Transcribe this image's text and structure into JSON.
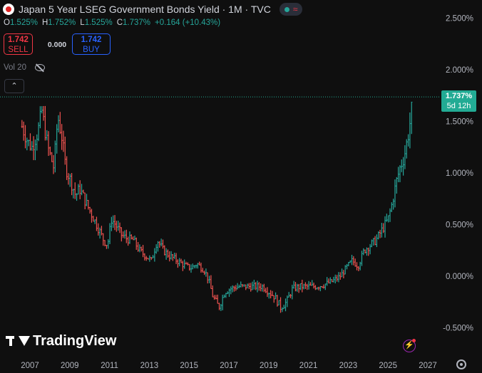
{
  "header": {
    "title": "Japan 5 Year LSEG Government Bonds Yield · 1M · TVC",
    "ohlc": [
      {
        "label": "O",
        "value": "1.525%"
      },
      {
        "label": "H",
        "value": "1.752%"
      },
      {
        "label": "L",
        "value": "1.525%"
      },
      {
        "label": "C",
        "value": "1.737%"
      }
    ],
    "change": "+0.164 (+10.43%)"
  },
  "trade": {
    "sell_price": "1.742",
    "sell_label": "SELL",
    "spread": "0.000",
    "buy_price": "1.742",
    "buy_label": "BUY"
  },
  "volume": {
    "label": "Vol 20"
  },
  "last_price": {
    "value": "1.737%",
    "countdown": "5d 12h"
  },
  "logo": {
    "text": "TradingView"
  },
  "icons": {
    "flag": "japan-flag-icon",
    "live": "market-open-dot-icon",
    "wave": "wave-icon",
    "eye": "eye-slash-icon",
    "collapse": "chevron-up-icon",
    "bolt": "lightning-icon",
    "settings": "gear-icon"
  },
  "colors": {
    "background": "#0f0f0f",
    "up": "#26a69a",
    "down": "#ef5350",
    "last_price": "#22ab94",
    "sell": "#f23645",
    "buy": "#2962ff"
  },
  "chart_data": {
    "type": "ohlc",
    "title": "Japan 5 Year LSEG Government Bonds Yield · 1M · TVC",
    "interval": "1M",
    "y_unit": "%",
    "ylim": [
      -0.6,
      2.6
    ],
    "xlim": [
      2006.5,
      2027.4
    ],
    "y_ticks": [
      "2.500%",
      "2.000%",
      "1.500%",
      "1.000%",
      "0.500%",
      "0.000%",
      "-0.500%"
    ],
    "y_tick_values": [
      2.5,
      2.0,
      1.5,
      1.0,
      0.5,
      0.0,
      -0.5
    ],
    "x_ticks": [
      "2007",
      "2009",
      "2011",
      "2013",
      "2015",
      "2017",
      "2019",
      "2021",
      "2023",
      "2025",
      "2027"
    ],
    "x_tick_values": [
      2007,
      2009,
      2011,
      2013,
      2015,
      2017,
      2019,
      2021,
      2023,
      2025,
      2027
    ],
    "last_value": 1.737,
    "grid": false,
    "series_anchors": [
      {
        "t": 2006.6,
        "y": 1.45
      },
      {
        "t": 2006.9,
        "y": 1.3
      },
      {
        "t": 2007.1,
        "y": 1.25
      },
      {
        "t": 2007.4,
        "y": 1.4
      },
      {
        "t": 2007.6,
        "y": 1.6
      },
      {
        "t": 2007.9,
        "y": 1.25
      },
      {
        "t": 2008.2,
        "y": 1.05
      },
      {
        "t": 2008.4,
        "y": 1.55
      },
      {
        "t": 2008.6,
        "y": 1.35
      },
      {
        "t": 2008.8,
        "y": 1.05
      },
      {
        "t": 2009.0,
        "y": 0.95
      },
      {
        "t": 2009.3,
        "y": 0.78
      },
      {
        "t": 2009.5,
        "y": 0.85
      },
      {
        "t": 2009.8,
        "y": 0.72
      },
      {
        "t": 2010.1,
        "y": 0.6
      },
      {
        "t": 2010.4,
        "y": 0.48
      },
      {
        "t": 2010.7,
        "y": 0.35
      },
      {
        "t": 2010.9,
        "y": 0.3
      },
      {
        "t": 2011.1,
        "y": 0.55
      },
      {
        "t": 2011.3,
        "y": 0.5
      },
      {
        "t": 2011.6,
        "y": 0.4
      },
      {
        "t": 2011.9,
        "y": 0.36
      },
      {
        "t": 2012.2,
        "y": 0.35
      },
      {
        "t": 2012.5,
        "y": 0.25
      },
      {
        "t": 2012.8,
        "y": 0.2
      },
      {
        "t": 2013.1,
        "y": 0.15
      },
      {
        "t": 2013.4,
        "y": 0.35
      },
      {
        "t": 2013.7,
        "y": 0.25
      },
      {
        "t": 2014.0,
        "y": 0.2
      },
      {
        "t": 2014.4,
        "y": 0.15
      },
      {
        "t": 2014.8,
        "y": 0.1
      },
      {
        "t": 2015.1,
        "y": 0.08
      },
      {
        "t": 2015.4,
        "y": 0.12
      },
      {
        "t": 2015.8,
        "y": 0.05
      },
      {
        "t": 2016.0,
        "y": -0.05
      },
      {
        "t": 2016.2,
        "y": -0.2
      },
      {
        "t": 2016.5,
        "y": -0.3
      },
      {
        "t": 2016.8,
        "y": -0.15
      },
      {
        "t": 2017.1,
        "y": -0.12
      },
      {
        "t": 2017.5,
        "y": -0.1
      },
      {
        "t": 2017.9,
        "y": -0.1
      },
      {
        "t": 2018.3,
        "y": -0.1
      },
      {
        "t": 2018.7,
        "y": -0.1
      },
      {
        "t": 2019.0,
        "y": -0.15
      },
      {
        "t": 2019.3,
        "y": -0.2
      },
      {
        "t": 2019.6,
        "y": -0.3
      },
      {
        "t": 2019.9,
        "y": -0.25
      },
      {
        "t": 2020.2,
        "y": -0.12
      },
      {
        "t": 2020.6,
        "y": -0.1
      },
      {
        "t": 2021.0,
        "y": -0.1
      },
      {
        "t": 2021.4,
        "y": -0.1
      },
      {
        "t": 2021.8,
        "y": -0.08
      },
      {
        "t": 2022.2,
        "y": -0.05
      },
      {
        "t": 2022.6,
        "y": 0.0
      },
      {
        "t": 2022.9,
        "y": 0.08
      },
      {
        "t": 2023.2,
        "y": 0.15
      },
      {
        "t": 2023.5,
        "y": 0.1
      },
      {
        "t": 2023.8,
        "y": 0.25
      },
      {
        "t": 2024.1,
        "y": 0.3
      },
      {
        "t": 2024.4,
        "y": 0.35
      },
      {
        "t": 2024.7,
        "y": 0.45
      },
      {
        "t": 2025.0,
        "y": 0.55
      },
      {
        "t": 2025.2,
        "y": 0.7
      },
      {
        "t": 2025.4,
        "y": 0.9
      },
      {
        "t": 2025.6,
        "y": 1.05
      },
      {
        "t": 2025.8,
        "y": 1.15
      },
      {
        "t": 2026.0,
        "y": 1.35
      },
      {
        "t": 2026.15,
        "y": 1.55
      },
      {
        "t": 2026.25,
        "y": 1.74
      }
    ]
  }
}
